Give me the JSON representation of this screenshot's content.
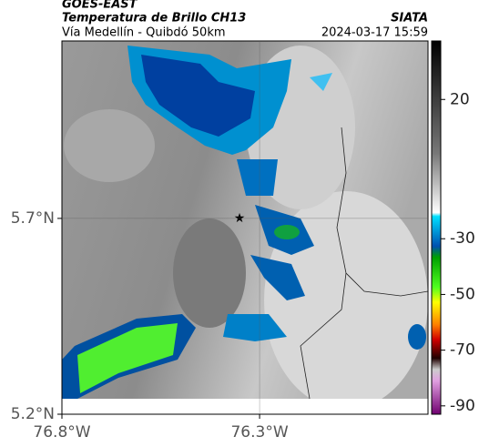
{
  "header": {
    "satellite": "GOES-EAST",
    "product": "Temperatura de Brillo CH13",
    "region": "Vía Medellín - Quibdó 50km",
    "source": "SIATA",
    "timestamp": "2024-03-17 15:59"
  },
  "map": {
    "xlim": [
      -76.8,
      -75.874
    ],
    "ylim": [
      5.2,
      6.153
    ],
    "xticks": [
      {
        "value": -76.8,
        "label": "76.8°W"
      },
      {
        "value": -76.3,
        "label": "76.3°W"
      }
    ],
    "yticks": [
      {
        "value": 5.2,
        "label": "5.2°N"
      },
      {
        "value": 5.7,
        "label": "5.7°N"
      }
    ],
    "grid": true
  },
  "colorbar": {
    "clim": [
      -93,
      41
    ],
    "ticks": [
      20,
      -30,
      -50,
      -70,
      -90
    ]
  }
}
